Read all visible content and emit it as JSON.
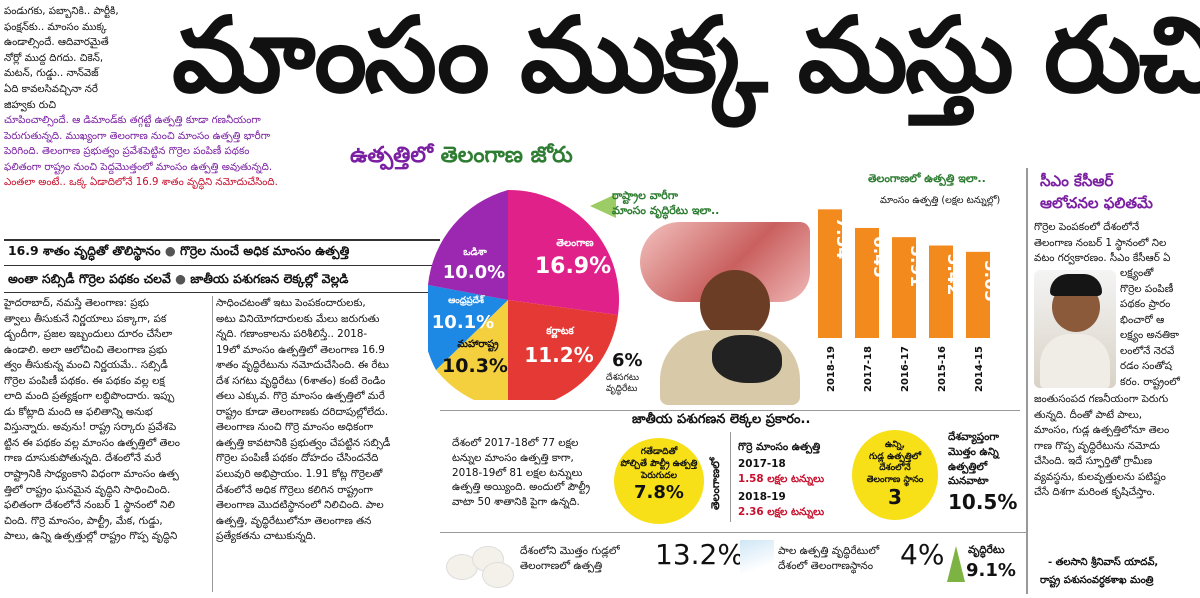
{
  "intro": {
    "lines": [
      "పండుగకు, పబ్బానికి.. పార్టీకి,",
      "ఫంక్షన్‌కు.. మాంసం ముక్క",
      "ఉండాల్సిందే. ఆదివారమైతే",
      "నోర్లో ముద్ద దిగదు. చికెన్,",
      "మటన్, గుడ్డు.. నాన్‌వెజ్",
      "ఏది కావలసివచ్చినా నరే",
      "జిహ్వకు రుచి"
    ],
    "colored": [
      "చూపించాల్సిందే. ఆ డిమాండ్‌కు తగ్గట్టే ఉత్పత్తి కూడా గణనీయంగా",
      "పెరుగుతున్నది. ముఖ్యంగా తెలంగాణ నుంచి మాంసం ఉత్పత్తి భారీగా",
      "పెరిగింది. తెలంగాణ ప్రభుత్వం ప్రవేశపెట్టిన గొర్రెల పంపిణీ పథకం",
      "ఫలితంగా రాష్ట్రం నుంచి పెద్దమొత్తంలో మాంసం ఉత్పత్తి అవుతున్నది.",
      "ఎంతలా అంటే.. ఒక్క ఏడాదిలోనే 16.9 శాతం వృద్ధిని నమోదుచేసింది."
    ]
  },
  "headline": "మాంసం ముక్క మస్తు రుచి",
  "subhead": {
    "part1": "ఉత్పత్తిలో ",
    "part2": "తెలంగాణ జోరు"
  },
  "strip": {
    "line1a": "16.9 శాతం వృద్ధితో తొలిస్థానం",
    "line1b": "గొర్రెల నుంచే అధిక మాంసం ఉత్పత్తి",
    "line2a": "అంతా సబ్సిడీ గొర్రెల పథకం చలవే",
    "line2b": "జాతీయ పశుగణన లెక్కల్లో వెల్లడి"
  },
  "col1": [
    "హైదరాబాద్, నమస్తే తెలంగాణ: ప్రభు",
    "త్వాలు తీసుకునే నిర్ణయాలు పక్కాగా, పక",
    "డ్బందీగా, ప్రజల ఇబ్బందులు దూరం చేసేలా",
    "ఉండాలి. అలా ఆలోచించి తెలంగాణ ప్రభు",
    "త్వం తీసుకున్న మంచి నిర్ణయమే.. సబ్సిడీ",
    "గొర్రెల పంపిణీ పథకం. ఈ పథకం వల్ల లక్ష",
    "లాది మంది ప్రత్యక్షంగా లబ్ధిపొందారు. ఇప్పు",
    "డు కోట్లాది మంది ఆ ఫలితాన్ని అనుభ",
    "విస్తున్నారు. అవును! రాష్ట్ర సర్కారు ప్రవేశపె",
    "ట్టిన ఈ పథకం వల్ల మాంసం ఉత్పత్తిలో తెలం",
    "గాణ దూసుకుపోతున్నది. దేశంలోనే మరే",
    "రాష్ట్రానికి సాధ్యంకాని విధంగా మాంసం ఉత్ప",
    "త్తిలో రాష్ట్రం ఘనమైన వృద్ధిని సాధించింది.",
    "ఫలితంగా దేశంలోనే నంబర్ 1 స్థానంలో నిలి",
    "చింది. గొర్రె మాంసం, పాల్ట్రీ, మేక, గుడ్డు,",
    "పాలు, ఉన్ని ఉత్పత్తుల్లో రాష్ట్రం గొప్ప వృద్ధిని"
  ],
  "col2": [
    "సాధించటంతో ఇటు పెంపకందారులకు,",
    "అటు వినియోగదారులకు మేలు జరుగుతు",
    "న్నది. గణాంకాలను పరిశీలిస్తే.. 2018-",
    "19లో మాంసం ఉత్పత్తిలో తెలంగాణ 16.9",
    "శాతం వృద్ధిరేటును నమోదుచేసింది. ఈ రేటు",
    "దేశ సగటు వృద్ధిరేటు (6శాతం) కంటే రెండిం",
    "తలు ఎక్కువ. గొర్రె మాంసం ఉత్పత్తిలో మరే",
    "రాష్ట్రం కూడా తెలంగాణకు దరిదాపుల్లోలేదు.",
    "తెలంగాణ నుంచి గొర్రె మాంసం అధికంగా",
    "ఉత్పత్తి కావటానికి ప్రభుత్వం చేపట్టిన సబ్సిడీ",
    "గొర్రెల పంపిణీ పథకం దోహదం చేసిందనేది",
    "పలువురి అభిప్రాయం. 1.91 కోట్ల గొర్రెలతో",
    "దేశంలోనే అధిక గొర్రెలు కలిగిన రాష్ట్రంగా",
    "తెలంగాణ మొదటిస్థానంలో నిలిచింది. పాల",
    "ఉత్పత్తి, వృద్ధిరేటులోనూ తెలంగాణ తన",
    "ప్రత్యేకతను చాటుకున్నది."
  ],
  "pie": {
    "callout": [
      "రాష్ట్రాల వారీగా",
      "మాంసం వృద్ధిరేటు ఇలా.."
    ],
    "slices": [
      {
        "name": "తెలంగాణ",
        "value": "16.9%",
        "color": "#e0218a"
      },
      {
        "name": "కర్ణాటక",
        "value": "11.2%",
        "color": "#e53935"
      },
      {
        "name": "మహారాష్ట్ర",
        "value": "10.3%",
        "color": "#f4d03f"
      },
      {
        "name": "ఆంధ్రప్రదేశ్",
        "value": "10.1%",
        "color": "#1e88e5"
      },
      {
        "name": "ఒడిశా",
        "value": "10.0%",
        "color": "#9c27b0"
      }
    ],
    "national_value": "6%",
    "national_label": [
      "దేశసగటు",
      "వృద్ధిరేటు"
    ]
  },
  "chart_data": {
    "type": "bar",
    "title": "తెలంగాణలో ఉత్పత్తి ఇలా..",
    "subtitle": "మాంసం ఉత్పత్తి (లక్షల టన్నుల్లో)",
    "categories": [
      "2018-19",
      "2017-18",
      "2016-17",
      "2015-16",
      "2014-15"
    ],
    "values": [
      7.54,
      6.45,
      5.91,
      5.42,
      5.05
    ],
    "value_labels": [
      "7.54",
      "6.45",
      "5.91",
      "5.42",
      "5.05"
    ],
    "color": "#f28a1e"
  },
  "side": {
    "title": [
      "సీఎం కేసీఆర్",
      "ఆలోచనల ఫలితమే"
    ],
    "lines_top": [
      "గొర్రెల పెంపకంలో దేశంలోనే",
      "తెలంగాణ నంబర్ 1 స్థానంలో నిల",
      "వటం గర్వకారణం. సీఎం కేసీఆర్ ఏ"
    ],
    "lines_right": [
      "లక్ష్యంతో",
      "గొర్రెల పంపిణీ",
      "పథకం ప్రారం",
      "భించారో ఆ",
      "లక్ష్యం అనతికా",
      "లంలోనే నెరవే",
      "రడం సంతోష",
      "కరం. రాష్ట్రంలో"
    ],
    "lines_bottom": [
      "జంతుసంపద గణనీయంగా పెరుగు",
      "తున్నది. దీంతో పాటే పాలు,",
      "మాంసం, గుడ్ల ఉత్పత్తిలోనూ తెలం",
      "గాణ గొప్ప వృద్ధిరేటును నమోదు",
      "చేసింది. ఇదే స్ఫూర్తితో గ్రామీణ",
      "వ్యవస్థను, కులవృత్తులను పటిష్టం",
      "చేసే దిశగా మరింత కృషిచేస్తాం."
    ],
    "signature": "- తలసాని శ్రీనివాస్ యాదవ్,",
    "designation": "రాష్ట్ర పశుసంవర్ధకశాఖ మంత్రి"
  },
  "census": {
    "header": "జాతీయ పశుగణన లెక్కల ప్రకారం..",
    "left_text": [
      "దేశంలో 2017-18లో 77 లక్షల",
      "టన్నుల మాంసం ఉత్పత్తి కాగా,",
      "2018-19లో 81 లక్షల టన్నులు",
      "ఉత్పత్తి అయ్యింది. అందులో పౌల్ట్రీ",
      "వాటా 50 శాతానికి పైగా ఉన్నది."
    ],
    "poultry_label": [
      "గతేడాదితో",
      "పోల్చితే పౌల్ట్రీ ఉత్పత్తి",
      "పెరుగుదల"
    ],
    "poultry_value": "7.8%",
    "vertical_label": "తెలంగాణలో",
    "mutton_title": "గొర్రె మాంసం ఉత్పత్తి",
    "mutton_rows": [
      {
        "year": "2017-18",
        "value": "1.58 లక్షల టన్నులు"
      },
      {
        "year": "2018-19",
        "value": "2.36 లక్షల టన్నులు"
      }
    ],
    "wool_label": [
      "ఉన్ని,",
      "గుడ్ల ఉత్పత్తిలో",
      "దేశంలోనే",
      "తెలంగాణ స్థానం"
    ],
    "wool_value": "3",
    "share_label": [
      "దేశవ్యాప్తంగా",
      "మొత్తం ఉన్ని",
      "ఉత్పత్తిలో",
      "మనవాటా"
    ],
    "share_value": "10.5%"
  },
  "bottom": {
    "eggs_label": [
      "దేశంలోని మొత్తం గుడ్లలో",
      "తెలంగాణలో ఉత్పత్తి"
    ],
    "eggs_value": "13.2%",
    "milk_label": [
      "పాల ఉత్పత్తి వృద్ధిరేటులో",
      "దేశంలో తెలంగాణస్థానం"
    ],
    "milk_value": "4%",
    "growth_label": "వృద్ధిరేటు",
    "growth_value": "9.1%"
  }
}
